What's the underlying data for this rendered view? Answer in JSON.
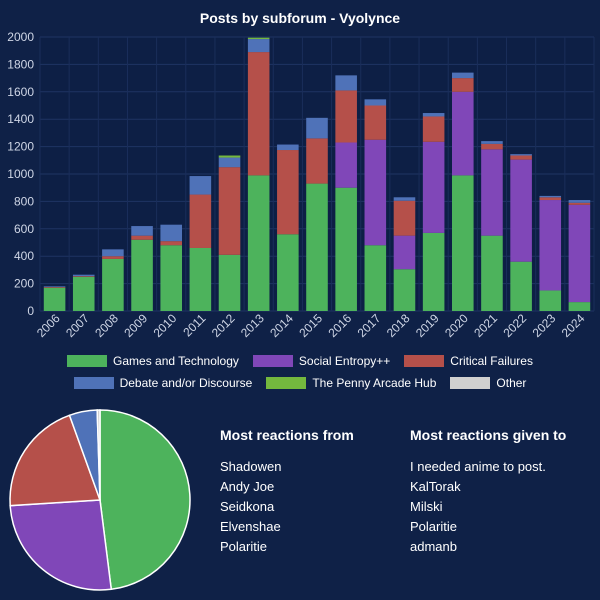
{
  "chart_data": [
    {
      "type": "bar",
      "stacked": true,
      "title": "Posts by subforum - Vyolynce",
      "categories": [
        "2006",
        "2007",
        "2008",
        "2009",
        "2010",
        "2011",
        "2012",
        "2013",
        "2014",
        "2015",
        "2016",
        "2017",
        "2018",
        "2019",
        "2020",
        "2021",
        "2022",
        "2023",
        "2024"
      ],
      "ylim": [
        0,
        2000
      ],
      "yticks": [
        0,
        200,
        400,
        600,
        800,
        1000,
        1200,
        1400,
        1600,
        1800,
        2000
      ],
      "grid": true,
      "legend_position": "bottom",
      "series": [
        {
          "name": "Games and Technology",
          "color": "#4db35c",
          "values": [
            170,
            250,
            380,
            520,
            480,
            460,
            410,
            990,
            560,
            930,
            900,
            480,
            305,
            570,
            990,
            550,
            360,
            150,
            65
          ]
        },
        {
          "name": "Social Entropy++",
          "color": "#8047b8",
          "values": [
            0,
            0,
            0,
            0,
            0,
            0,
            0,
            0,
            0,
            0,
            330,
            770,
            245,
            665,
            610,
            630,
            745,
            660,
            710
          ]
        },
        {
          "name": "Critical Failures",
          "color": "#b5504a",
          "values": [
            5,
            5,
            20,
            30,
            30,
            390,
            640,
            900,
            615,
            330,
            380,
            250,
            255,
            185,
            100,
            40,
            30,
            20,
            15
          ]
        },
        {
          "name": "Debate and/or Discourse",
          "color": "#4f72b8",
          "values": [
            5,
            10,
            50,
            70,
            120,
            135,
            70,
            95,
            40,
            150,
            110,
            45,
            25,
            25,
            40,
            20,
            10,
            10,
            20
          ]
        },
        {
          "name": "The Penny Arcade Hub",
          "color": "#74b83e",
          "values": [
            0,
            0,
            0,
            0,
            0,
            0,
            15,
            10,
            0,
            0,
            0,
            0,
            0,
            0,
            0,
            0,
            0,
            0,
            0
          ]
        },
        {
          "name": "Other",
          "color": "#d0d0d0",
          "values": [
            0,
            0,
            0,
            0,
            0,
            0,
            0,
            0,
            0,
            0,
            0,
            0,
            0,
            0,
            0,
            0,
            0,
            0,
            0
          ]
        }
      ]
    },
    {
      "type": "pie",
      "slices": [
        {
          "name": "Games and Technology",
          "value": 48,
          "color": "#4db35c"
        },
        {
          "name": "Social Entropy++",
          "value": 26,
          "color": "#8047b8"
        },
        {
          "name": "Critical Failures",
          "value": 20.5,
          "color": "#b5504a"
        },
        {
          "name": "Debate and/or Discourse",
          "value": 5,
          "color": "#4f72b8"
        },
        {
          "name": "Other",
          "value": 0.5,
          "color": "#d0d0d0"
        }
      ]
    }
  ],
  "reactions_from": {
    "heading": "Most reactions from",
    "names": [
      "Shadowen",
      "Andy Joe",
      "Seidkona",
      "Elvenshae",
      "Polaritie"
    ]
  },
  "reactions_given": {
    "heading": "Most reactions given to",
    "names": [
      "I needed anime to post.",
      "KalTorak",
      "Milski",
      "Polaritie",
      "admanb"
    ]
  }
}
